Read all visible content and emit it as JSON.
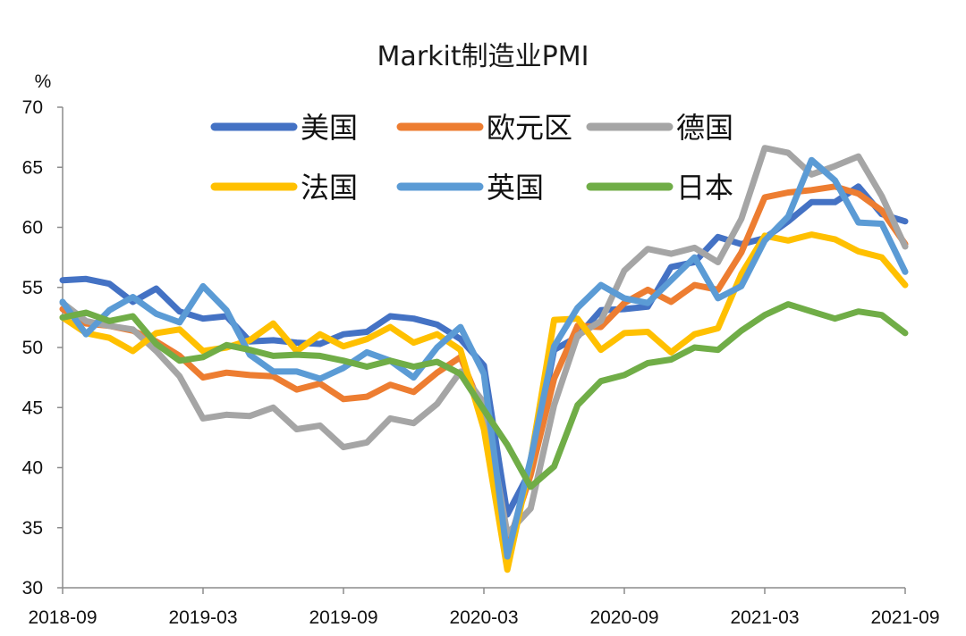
{
  "chart_data": {
    "type": "line",
    "title": "Markit制造业PMI",
    "ylabel": "%",
    "xlabel": "",
    "ylim": [
      30,
      70
    ],
    "yticks": [
      30,
      35,
      40,
      45,
      50,
      55,
      60,
      65,
      70
    ],
    "xtick_labels": [
      "2018-09",
      "2019-03",
      "2019-09",
      "2020-03",
      "2020-09",
      "2021-03",
      "2021-09"
    ],
    "grid": false,
    "legend_position": "top-center, two rows of three",
    "x": [
      "2018-09",
      "2018-10",
      "2018-11",
      "2018-12",
      "2019-01",
      "2019-02",
      "2019-03",
      "2019-04",
      "2019-05",
      "2019-06",
      "2019-07",
      "2019-08",
      "2019-09",
      "2019-10",
      "2019-11",
      "2019-12",
      "2020-01",
      "2020-02",
      "2020-03",
      "2020-04",
      "2020-05",
      "2020-06",
      "2020-07",
      "2020-08",
      "2020-09",
      "2020-10",
      "2020-11",
      "2020-12",
      "2021-01",
      "2021-02",
      "2021-03",
      "2021-04",
      "2021-05",
      "2021-06",
      "2021-07",
      "2021-08",
      "2021-09"
    ],
    "series": [
      {
        "name": "美国",
        "color": "#4472C4",
        "values": [
          55.6,
          55.7,
          55.3,
          53.8,
          54.9,
          53.0,
          52.4,
          52.6,
          50.5,
          50.6,
          50.4,
          50.3,
          51.1,
          51.3,
          52.6,
          52.4,
          51.9,
          50.7,
          48.5,
          36.1,
          39.8,
          49.8,
          50.9,
          53.1,
          53.2,
          53.4,
          56.7,
          57.1,
          59.2,
          58.6,
          59.1,
          60.5,
          62.1,
          62.1,
          63.4,
          61.1,
          60.5
        ]
      },
      {
        "name": "欧元区",
        "color": "#ED7D31",
        "values": [
          53.2,
          52.0,
          51.8,
          51.4,
          50.5,
          49.3,
          47.5,
          47.9,
          47.7,
          47.6,
          46.5,
          47.0,
          45.7,
          45.9,
          46.9,
          46.3,
          47.9,
          49.2,
          44.5,
          33.4,
          39.4,
          47.4,
          51.8,
          51.7,
          53.7,
          54.8,
          53.8,
          55.2,
          54.8,
          57.9,
          62.5,
          62.9,
          63.1,
          63.4,
          62.8,
          61.4,
          58.6
        ]
      },
      {
        "name": "德国",
        "color": "#A5A5A5",
        "values": [
          53.7,
          52.2,
          51.8,
          51.5,
          49.7,
          47.6,
          44.1,
          44.4,
          44.3,
          45.0,
          43.2,
          43.5,
          41.7,
          42.1,
          44.1,
          43.7,
          45.3,
          48.0,
          45.4,
          34.5,
          36.6,
          45.2,
          51.0,
          52.2,
          56.4,
          58.2,
          57.8,
          58.3,
          57.1,
          60.7,
          66.6,
          66.2,
          64.4,
          65.1,
          65.9,
          62.6,
          58.4
        ]
      },
      {
        "name": "法国",
        "color": "#FFC000",
        "values": [
          52.5,
          51.2,
          50.8,
          49.7,
          51.2,
          51.5,
          49.7,
          50.0,
          50.6,
          52.0,
          49.7,
          51.1,
          50.1,
          50.7,
          51.7,
          50.4,
          51.1,
          49.8,
          43.2,
          31.5,
          40.6,
          52.3,
          52.4,
          49.8,
          51.2,
          51.3,
          49.6,
          51.1,
          51.6,
          56.1,
          59.3,
          58.9,
          59.4,
          59.0,
          58.0,
          57.5,
          55.2
        ]
      },
      {
        "name": "英国",
        "color": "#5B9BD5",
        "values": [
          53.8,
          51.1,
          53.1,
          54.2,
          52.8,
          52.1,
          55.1,
          53.1,
          49.4,
          48.0,
          48.0,
          47.4,
          48.3,
          49.6,
          48.9,
          47.5,
          50.0,
          51.7,
          47.8,
          32.6,
          40.7,
          50.1,
          53.3,
          55.2,
          54.1,
          53.7,
          55.6,
          57.5,
          54.1,
          55.1,
          58.9,
          60.9,
          65.6,
          63.9,
          60.4,
          60.3,
          56.3
        ]
      },
      {
        "name": "日本",
        "color": "#70AD47",
        "values": [
          52.5,
          52.9,
          52.2,
          52.6,
          50.3,
          48.9,
          49.2,
          50.2,
          49.8,
          49.3,
          49.4,
          49.3,
          48.9,
          48.4,
          48.9,
          48.4,
          48.8,
          47.8,
          44.8,
          41.9,
          38.4,
          40.1,
          45.2,
          47.2,
          47.7,
          48.7,
          49.0,
          50.0,
          49.8,
          51.4,
          52.7,
          53.6,
          53.0,
          52.4,
          53.0,
          52.7,
          51.2
        ]
      }
    ]
  }
}
